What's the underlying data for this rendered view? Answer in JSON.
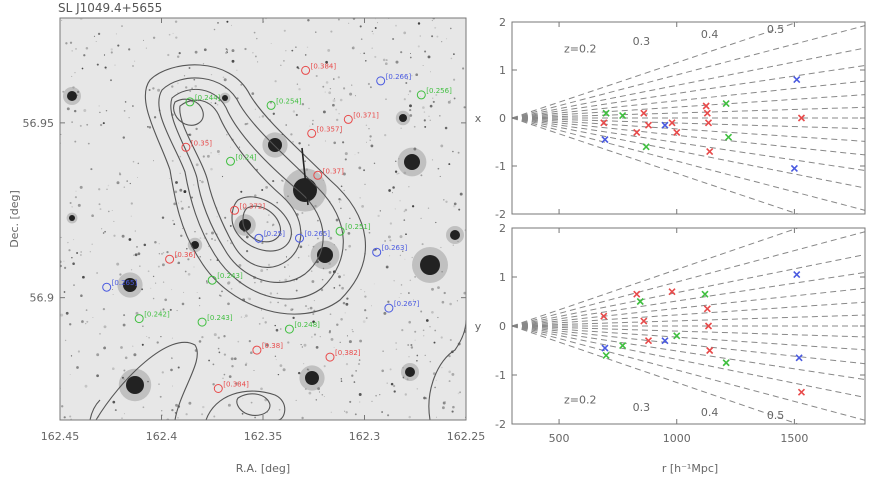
{
  "figure": {
    "title": "SL J1049.4+5655"
  },
  "chart_data": [
    {
      "type": "scatter",
      "panel": "sky",
      "xlabel": "R.A. [deg]",
      "ylabel": "Dec. [deg]",
      "xlim": [
        162.45,
        162.25
      ],
      "ylim": [
        56.865,
        56.98
      ],
      "xticks": [
        "162.45",
        "162.4",
        "162.35",
        "162.3",
        "162.25"
      ],
      "yticks": [
        "56.95",
        "56.9"
      ],
      "background": "grayscale optical image with contours",
      "colors": {
        "red": "#e84a4a",
        "green": "#3fbf3f",
        "blue": "#4a5ae0"
      },
      "points": [
        {
          "ra": 162.329,
          "dec": 56.965,
          "color": "red",
          "label": "[0.384]"
        },
        {
          "ra": 162.292,
          "dec": 56.962,
          "color": "blue",
          "label": "[0.266]"
        },
        {
          "ra": 162.272,
          "dec": 56.958,
          "color": "green",
          "label": "[0.256]"
        },
        {
          "ra": 162.386,
          "dec": 56.956,
          "color": "green",
          "label": "[0.244]"
        },
        {
          "ra": 162.346,
          "dec": 56.955,
          "color": "green",
          "label": "[0.254]"
        },
        {
          "ra": 162.308,
          "dec": 56.951,
          "color": "red",
          "label": "[0.371]"
        },
        {
          "ra": 162.326,
          "dec": 56.947,
          "color": "red",
          "label": "[0.357]"
        },
        {
          "ra": 162.388,
          "dec": 56.943,
          "color": "red",
          "label": "[0.35]"
        },
        {
          "ra": 162.366,
          "dec": 56.939,
          "color": "green",
          "label": "[0.24]"
        },
        {
          "ra": 162.323,
          "dec": 56.935,
          "color": "red",
          "label": "[0.37]"
        },
        {
          "ra": 162.364,
          "dec": 56.925,
          "color": "red",
          "label": "[0.372]"
        },
        {
          "ra": 162.352,
          "dec": 56.917,
          "color": "blue",
          "label": "[0.25]"
        },
        {
          "ra": 162.332,
          "dec": 56.917,
          "color": "blue",
          "label": "[0.265]"
        },
        {
          "ra": 162.312,
          "dec": 56.919,
          "color": "green",
          "label": "[0.251]"
        },
        {
          "ra": 162.396,
          "dec": 56.911,
          "color": "red",
          "label": "[0.36]"
        },
        {
          "ra": 162.294,
          "dec": 56.913,
          "color": "blue",
          "label": "[0.263]"
        },
        {
          "ra": 162.427,
          "dec": 56.903,
          "color": "blue",
          "label": "[0.265]"
        },
        {
          "ra": 162.375,
          "dec": 56.905,
          "color": "green",
          "label": "[0.243]"
        },
        {
          "ra": 162.288,
          "dec": 56.897,
          "color": "blue",
          "label": "[0.267]"
        },
        {
          "ra": 162.411,
          "dec": 56.894,
          "color": "green",
          "label": "[0.242]"
        },
        {
          "ra": 162.38,
          "dec": 56.893,
          "color": "green",
          "label": "[0.243]"
        },
        {
          "ra": 162.337,
          "dec": 56.891,
          "color": "green",
          "label": "[0.248]"
        },
        {
          "ra": 162.353,
          "dec": 56.885,
          "color": "red",
          "label": "[0.38]"
        },
        {
          "ra": 162.317,
          "dec": 56.883,
          "color": "red",
          "label": "[0.382]"
        },
        {
          "ra": 162.372,
          "dec": 56.874,
          "color": "red",
          "label": "[0.384]"
        }
      ]
    },
    {
      "type": "scatter",
      "panel": "cone-top",
      "xlabel": "",
      "ylabel": "x",
      "xlim": [
        300,
        1800
      ],
      "ylim": [
        -2,
        2
      ],
      "yticks": [
        -2,
        -1,
        0,
        1,
        2
      ],
      "z_lines": [
        0.2,
        0.3,
        0.4,
        0.5
      ],
      "points": [
        {
          "x": 690,
          "y": -0.1,
          "color": "red"
        },
        {
          "x": 695,
          "y": -0.45,
          "color": "blue"
        },
        {
          "x": 700,
          "y": 0.1,
          "color": "green"
        },
        {
          "x": 770,
          "y": 0.05,
          "color": "green"
        },
        {
          "x": 830,
          "y": -0.3,
          "color": "red"
        },
        {
          "x": 860,
          "y": 0.1,
          "color": "red"
        },
        {
          "x": 870,
          "y": -0.6,
          "color": "green"
        },
        {
          "x": 880,
          "y": -0.15,
          "color": "red"
        },
        {
          "x": 950,
          "y": -0.15,
          "color": "blue"
        },
        {
          "x": 980,
          "y": -0.1,
          "color": "red"
        },
        {
          "x": 1000,
          "y": -0.3,
          "color": "red"
        },
        {
          "x": 1125,
          "y": 0.25,
          "color": "red"
        },
        {
          "x": 1130,
          "y": 0.1,
          "color": "red"
        },
        {
          "x": 1135,
          "y": -0.1,
          "color": "red"
        },
        {
          "x": 1140,
          "y": -0.7,
          "color": "red"
        },
        {
          "x": 1210,
          "y": 0.3,
          "color": "green"
        },
        {
          "x": 1220,
          "y": -0.4,
          "color": "green"
        },
        {
          "x": 1510,
          "y": 0.8,
          "color": "blue"
        },
        {
          "x": 1530,
          "y": 0.0,
          "color": "red"
        },
        {
          "x": 1500,
          "y": -1.05,
          "color": "blue"
        }
      ]
    },
    {
      "type": "scatter",
      "panel": "cone-bottom",
      "xlabel": "r [h⁻¹Mpc]",
      "ylabel": "y",
      "xlim": [
        300,
        1800
      ],
      "ylim": [
        -2,
        2
      ],
      "xticks": [
        500,
        1000,
        1500
      ],
      "yticks": [
        -2,
        -1,
        0,
        1,
        2
      ],
      "z_lines": [
        0.2,
        0.3,
        0.4,
        0.5
      ],
      "points": [
        {
          "x": 690,
          "y": 0.2,
          "color": "red"
        },
        {
          "x": 695,
          "y": -0.45,
          "color": "blue"
        },
        {
          "x": 700,
          "y": -0.6,
          "color": "green"
        },
        {
          "x": 770,
          "y": -0.4,
          "color": "green"
        },
        {
          "x": 830,
          "y": 0.65,
          "color": "red"
        },
        {
          "x": 845,
          "y": 0.5,
          "color": "green"
        },
        {
          "x": 860,
          "y": 0.1,
          "color": "red"
        },
        {
          "x": 880,
          "y": -0.3,
          "color": "red"
        },
        {
          "x": 950,
          "y": -0.3,
          "color": "blue"
        },
        {
          "x": 980,
          "y": 0.7,
          "color": "red"
        },
        {
          "x": 1000,
          "y": -0.2,
          "color": "green"
        },
        {
          "x": 1120,
          "y": 0.65,
          "color": "green"
        },
        {
          "x": 1130,
          "y": 0.35,
          "color": "red"
        },
        {
          "x": 1135,
          "y": 0.0,
          "color": "red"
        },
        {
          "x": 1140,
          "y": -0.5,
          "color": "red"
        },
        {
          "x": 1210,
          "y": -0.75,
          "color": "green"
        },
        {
          "x": 1510,
          "y": 1.05,
          "color": "blue"
        },
        {
          "x": 1520,
          "y": -0.65,
          "color": "blue"
        },
        {
          "x": 1530,
          "y": -1.35,
          "color": "red"
        }
      ]
    }
  ]
}
